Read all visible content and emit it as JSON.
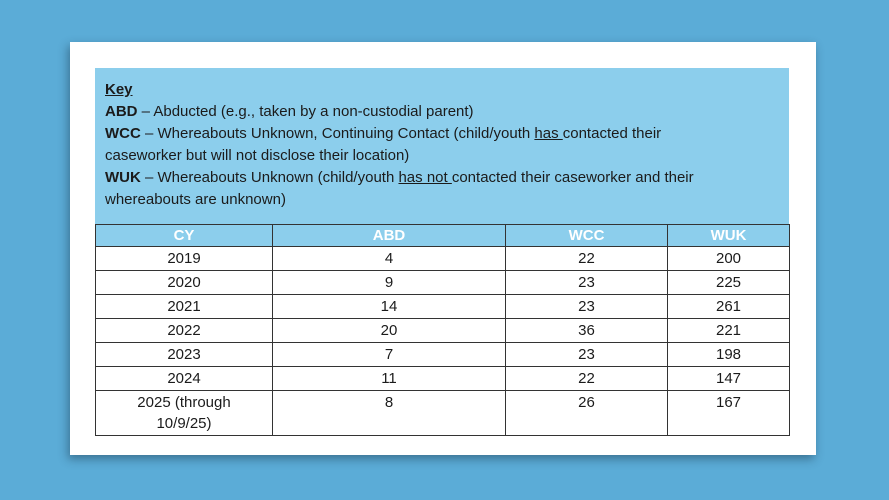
{
  "colors": {
    "page_background": "#5BACD7",
    "card_color": "#FFFFFF",
    "panel_blue": "#8CCEEC",
    "header_text": "#FFFFFF",
    "body_text": "#1B1B1B",
    "table_border": "#333333"
  },
  "key": {
    "title": "Key",
    "entries": [
      {
        "term": "ABD",
        "pre": " – Abducted (e.g., taken by a non-custodial parent)",
        "underlined": "",
        "post": ""
      },
      {
        "term": "WCC",
        "pre": " – Whereabouts Unknown, Continuing Contact (child/youth ",
        "underlined": "has ",
        "post": "contacted their caseworker but will not disclose their location)"
      },
      {
        "term": "WUK",
        "pre": " – Whereabouts Unknown (child/youth ",
        "underlined": "has not ",
        "post": "contacted their caseworker and their whereabouts are unknown)"
      }
    ]
  },
  "table": {
    "columns": [
      "CY",
      "ABD",
      "WCC",
      "WUK"
    ],
    "rows": [
      [
        "2019",
        "4",
        "22",
        "200"
      ],
      [
        "2020",
        "9",
        "23",
        "225"
      ],
      [
        "2021",
        "14",
        "23",
        "261"
      ],
      [
        "2022",
        "20",
        "36",
        "221"
      ],
      [
        "2023",
        "7",
        "23",
        "198"
      ],
      [
        "2024",
        "11",
        "22",
        "147"
      ],
      [
        "2025 (through\n10/9/25)",
        "8",
        "26",
        "167"
      ]
    ]
  }
}
